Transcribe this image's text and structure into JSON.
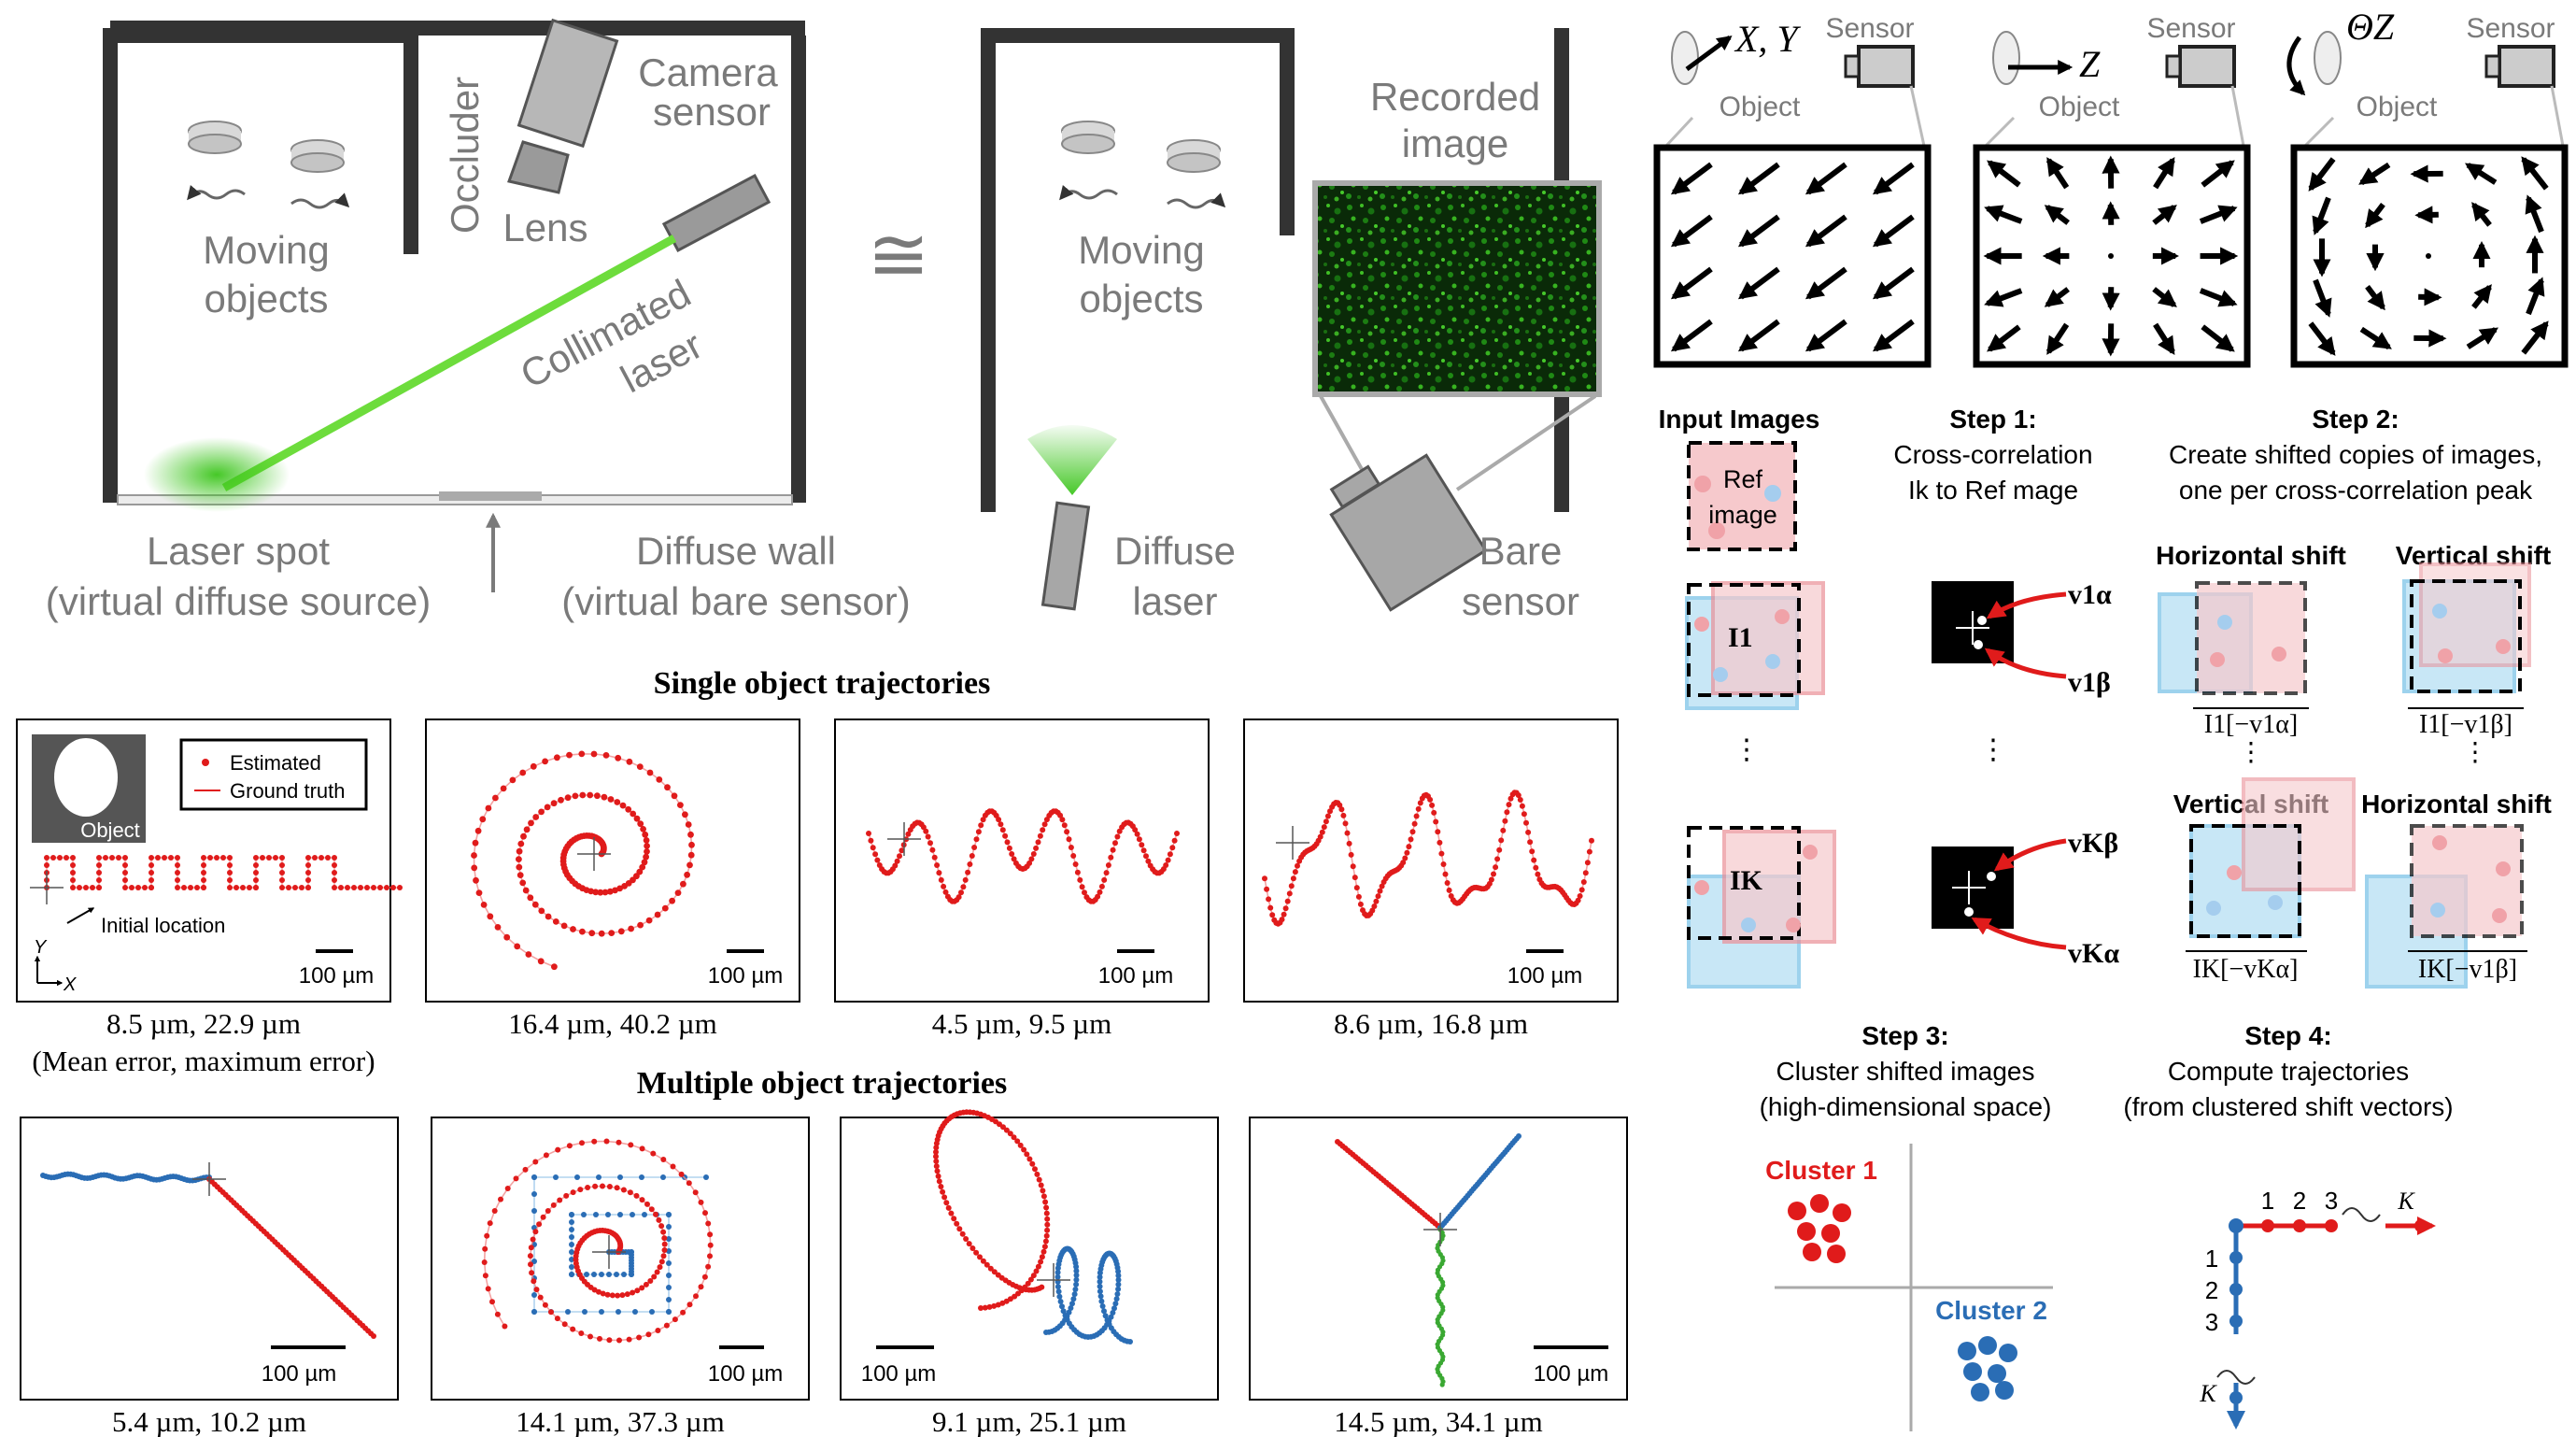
{
  "setup_left": {
    "moving_objects": [
      "Moving",
      "objects"
    ],
    "occluder": "Occluder",
    "camera_sensor": [
      "Camera",
      "sensor"
    ],
    "lens": "Lens",
    "collimated_laser": [
      "Collimated",
      "laser"
    ],
    "laser_spot": [
      "Laser spot",
      "(virtual diffuse source)"
    ],
    "diffuse_wall": [
      "Diffuse wall",
      "(virtual bare sensor)"
    ]
  },
  "approx_symbol": "≅",
  "setup_right": {
    "moving_objects": [
      "Moving",
      "objects"
    ],
    "recorded_image": [
      "Recorded",
      "image"
    ],
    "diffuse_laser": [
      "Diffuse",
      "laser"
    ],
    "bare_sensor": [
      "Bare",
      "sensor"
    ]
  },
  "motion_fields": [
    {
      "axis": "X, Y",
      "object": "Object",
      "sensor": "Sensor",
      "field": "translation-xy"
    },
    {
      "axis": "Z",
      "object": "Object",
      "sensor": "Sensor",
      "field": "translation-z"
    },
    {
      "axis": "ΘZ",
      "object": "Object",
      "sensor": "Sensor",
      "field": "rotation-z"
    }
  ],
  "pipeline": {
    "input_images": "Input Images",
    "ref_image": [
      "Ref",
      "image"
    ],
    "i1": "I1",
    "ik": "IK",
    "dots": "⋮",
    "step1_title": "Step 1:",
    "step1_lines": [
      "Cross-correlation",
      "Ik to Ref mage"
    ],
    "peak_labels": [
      "v1α",
      "v1β",
      "vKβ",
      "vKα"
    ],
    "step2_title": "Step 2:",
    "step2_lines": [
      "Create shifted copies of images,",
      "one per cross-correlation peak"
    ],
    "horizontal_shift": "Horizontal shift",
    "vertical_shift": "Vertical shift",
    "shift_labels": [
      "I1[−v1α]",
      "I1[−v1β]",
      "IK[−vKα]",
      "IK[−v1β]"
    ],
    "step3_title": "Step 3:",
    "step3_lines": [
      "Cluster shifted images",
      "(high-dimensional space)"
    ],
    "cluster1": "Cluster 1",
    "cluster2": "Cluster 2",
    "step4_title": "Step 4:",
    "step4_lines": [
      "Compute trajectories",
      "(from clustered shift vectors)"
    ],
    "traj_h_labels": [
      "1",
      "2",
      "3",
      "K"
    ],
    "traj_v_labels": [
      "1",
      "2",
      "3",
      "K"
    ]
  },
  "single": {
    "title": "Single object trajectories",
    "legend": [
      "Estimated",
      "Ground truth"
    ],
    "object_label": "Object",
    "initial_location": "Initial location",
    "axis_labels": [
      "Y",
      "X"
    ],
    "scale_bar": "100 µm",
    "errors": [
      "8.5 µm, 22.9 µm",
      "16.4 µm, 40.2 µm",
      "4.5 µm, 9.5 µm",
      "8.6 µm, 16.8 µm"
    ],
    "error_note": "(Mean error, maximum error)"
  },
  "multiple": {
    "title": "Multiple object trajectories",
    "scale_bar": "100 µm",
    "errors": [
      "5.4 µm, 10.2 µm",
      "14.1 µm, 37.3 µm",
      "9.1 µm, 25.1 µm",
      "14.5 µm, 34.1 µm"
    ]
  },
  "colors": {
    "laser_green": "#5fd13a",
    "estimated_red": "#e01b1b",
    "blue": "#2a6db5",
    "pink_fill": "#f6c9cc",
    "cyan_fill": "#bfe3f5",
    "gray_text": "#7a7a7a"
  }
}
